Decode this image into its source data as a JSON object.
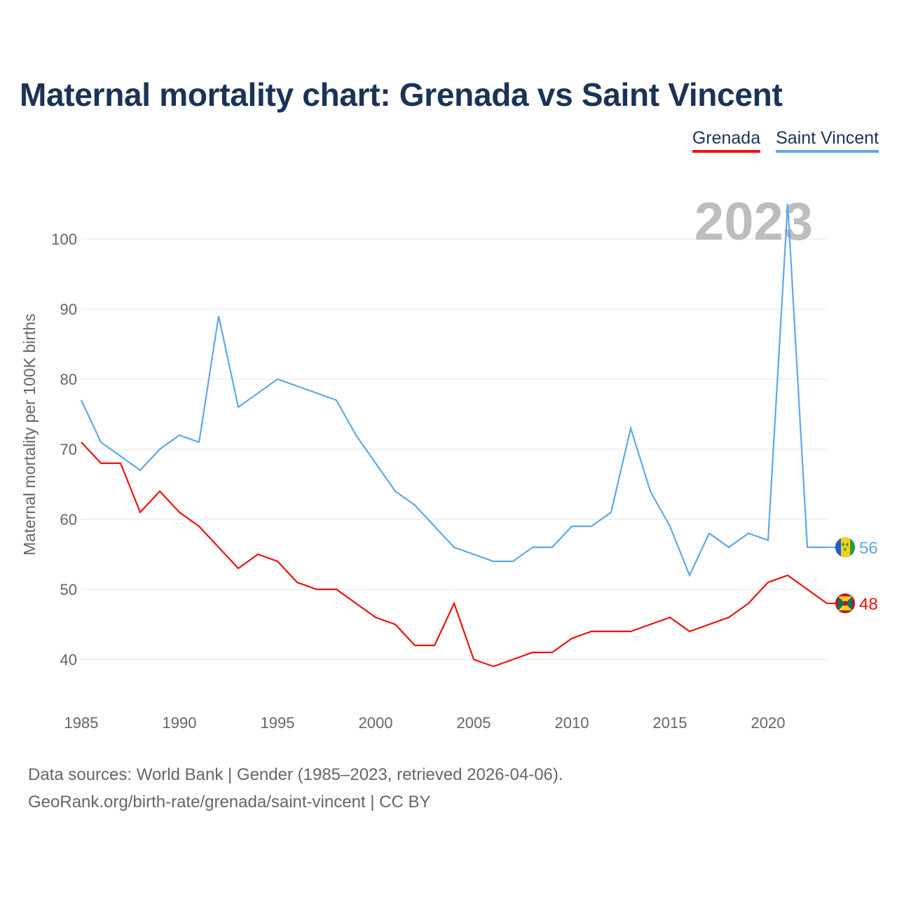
{
  "title": "Maternal mortality chart: Grenada vs Saint Vincent",
  "source": {
    "line1": "Data sources: World Bank | Gender (1985–2023, retrieved 2026-04-06).",
    "line2": "GeoRank.org/birth-rate/grenada/saint-vincent | CC BY"
  },
  "chart_data": {
    "type": "line",
    "title": "Maternal mortality chart: Grenada vs Saint Vincent",
    "xlabel": "",
    "ylabel": "Maternal mortality per 100K births",
    "year_label": "2023",
    "xlim": [
      1985,
      2023
    ],
    "ylim": [
      33.5,
      107
    ],
    "x_ticks": [
      1985,
      1990,
      1995,
      2000,
      2005,
      2010,
      2015,
      2020
    ],
    "y_ticks": [
      40,
      50,
      60,
      70,
      80,
      90,
      100
    ],
    "grid": true,
    "legend_position": "top-right",
    "x": [
      1985,
      1986,
      1987,
      1988,
      1989,
      1990,
      1991,
      1992,
      1993,
      1994,
      1995,
      1996,
      1997,
      1998,
      1999,
      2000,
      2001,
      2002,
      2003,
      2004,
      2005,
      2006,
      2007,
      2008,
      2009,
      2010,
      2011,
      2012,
      2013,
      2014,
      2015,
      2016,
      2017,
      2018,
      2019,
      2020,
      2021,
      2022,
      2023
    ],
    "series": [
      {
        "name": "Grenada",
        "color": "#ee1111",
        "end_label": "48",
        "flag_icon": "grenada-flag-icon",
        "values": [
          71,
          68,
          68,
          61,
          64,
          61,
          59,
          56,
          53,
          55,
          54,
          51,
          50,
          50,
          48,
          46,
          45,
          42,
          42,
          48,
          40,
          39,
          40,
          41,
          41,
          43,
          44,
          44,
          44,
          45,
          46,
          44,
          45,
          46,
          48,
          51,
          52,
          50,
          48
        ]
      },
      {
        "name": "Saint Vincent",
        "color": "#5fa8e8",
        "end_label": "56",
        "flag_icon": "saint-vincent-flag-icon",
        "values": [
          77,
          71,
          69,
          67,
          70,
          72,
          71,
          89,
          76,
          78,
          80,
          79,
          78,
          77,
          72,
          68,
          64,
          62,
          59,
          56,
          55,
          54,
          54,
          56,
          56,
          59,
          59,
          61,
          73,
          64,
          59,
          52,
          58,
          56,
          58,
          57,
          105,
          56,
          56
        ]
      }
    ]
  }
}
